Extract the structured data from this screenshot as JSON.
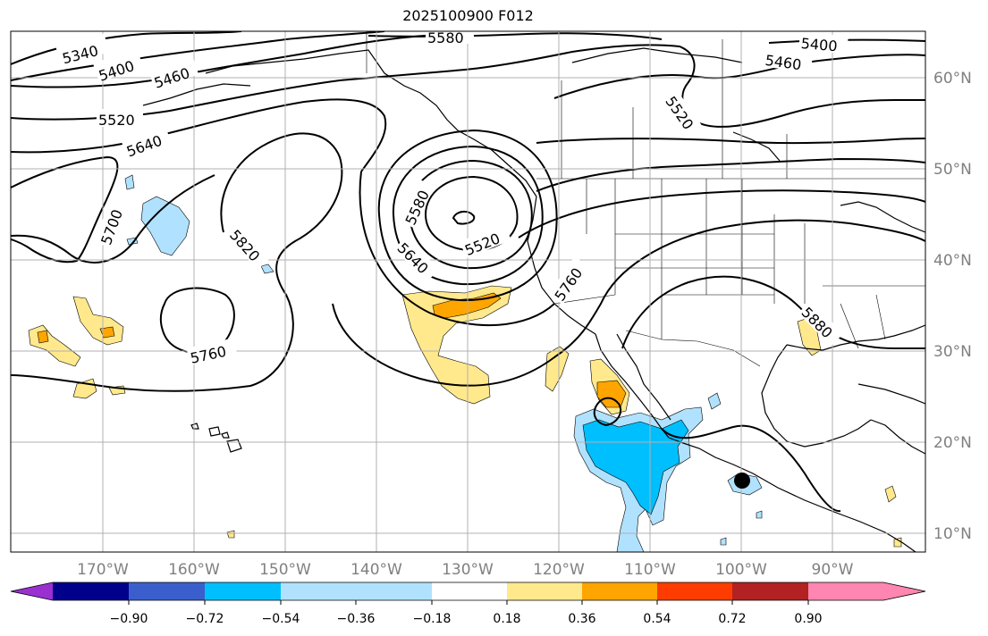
{
  "title": "2025100900 F012",
  "longitude_labels": [
    "170°W",
    "160°W",
    "150°W",
    "140°W",
    "130°W",
    "120°W",
    "110°W",
    "100°W",
    "90°W"
  ],
  "latitude_labels": [
    "60°N",
    "50°N",
    "40°N",
    "30°N",
    "20°N",
    "10°N"
  ],
  "contour_labels": [
    {
      "id": "c5340",
      "text": "5340"
    },
    {
      "id": "c5400a",
      "text": "5400"
    },
    {
      "id": "c5460a",
      "text": "5460"
    },
    {
      "id": "c5580top",
      "text": "5580"
    },
    {
      "id": "c5400b",
      "text": "5400"
    },
    {
      "id": "c5460b",
      "text": "5460"
    },
    {
      "id": "c5520a",
      "text": "5520"
    },
    {
      "id": "c5640a",
      "text": "5640"
    },
    {
      "id": "c5520b",
      "text": "5520"
    },
    {
      "id": "c5700",
      "text": "5700"
    },
    {
      "id": "c5820",
      "text": "5820"
    },
    {
      "id": "c5580low",
      "text": "5580"
    },
    {
      "id": "c5640b",
      "text": "5640"
    },
    {
      "id": "c5520c",
      "text": "5520"
    },
    {
      "id": "c5760a",
      "text": "5760"
    },
    {
      "id": "c5880",
      "text": "5880"
    },
    {
      "id": "c5760b",
      "text": "5760"
    }
  ],
  "colorbar": {
    "ticks": [
      "−0.90",
      "−0.72",
      "−0.54",
      "−0.36",
      "−0.18",
      "0.18",
      "0.36",
      "0.54",
      "0.72",
      "0.90"
    ],
    "colors": [
      "#9b30d0",
      "#00008b",
      "#3a5fcd",
      "#00bfff",
      "#b0e2ff",
      "#ffffff",
      "#ffe98c",
      "#ffa500",
      "#ff3c00",
      "#b22222",
      "#ff86b0"
    ]
  },
  "colors": {
    "grid": "#b0b0b0",
    "coast": "#000000",
    "contour": "#000000",
    "shade_light_yellow": "#ffe98c",
    "shade_orange": "#ffa500",
    "shade_light_blue": "#b0e2ff",
    "shade_deep_sky_blue": "#00bfff"
  }
}
